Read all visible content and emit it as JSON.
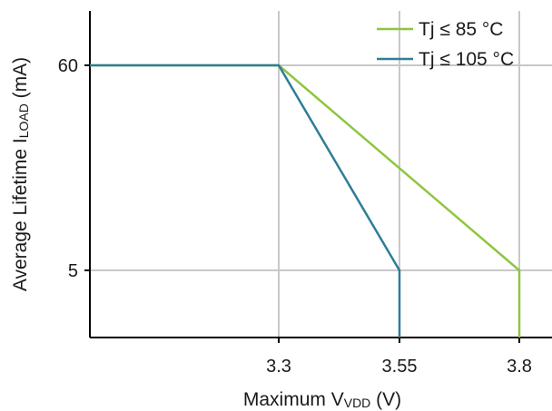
{
  "chart_data": {
    "type": "line",
    "xlabel": {
      "main": "Maximum V",
      "sub": "VDD",
      "unit": " (V)"
    },
    "ylabel": {
      "main": "Average Lifetime I",
      "sub": "LOAD",
      "unit": " (mA)"
    },
    "x_ticks": [
      "3.3",
      "3.55",
      "3.8"
    ],
    "y_ticks": [
      "60",
      "5"
    ],
    "series": [
      {
        "name": "Tj ≤ 85 °C",
        "color": "#8dc63f",
        "points": [
          {
            "x": "start",
            "y": 60
          },
          {
            "x": 3.3,
            "y": 60
          },
          {
            "x": 3.8,
            "y": 5
          },
          {
            "x": 3.8,
            "y": "bottom"
          }
        ]
      },
      {
        "name": "Tj ≤ 105 °C",
        "color": "#2e7d96",
        "points": [
          {
            "x": "start",
            "y": 60
          },
          {
            "x": 3.3,
            "y": 60
          },
          {
            "x": 3.55,
            "y": 5
          },
          {
            "x": 3.55,
            "y": "bottom"
          }
        ]
      }
    ],
    "grid": true,
    "legend_position": "top-right",
    "colors": {
      "axis": "#000000",
      "grid": "#c8c8c8",
      "text": "#1a1a1a"
    }
  }
}
